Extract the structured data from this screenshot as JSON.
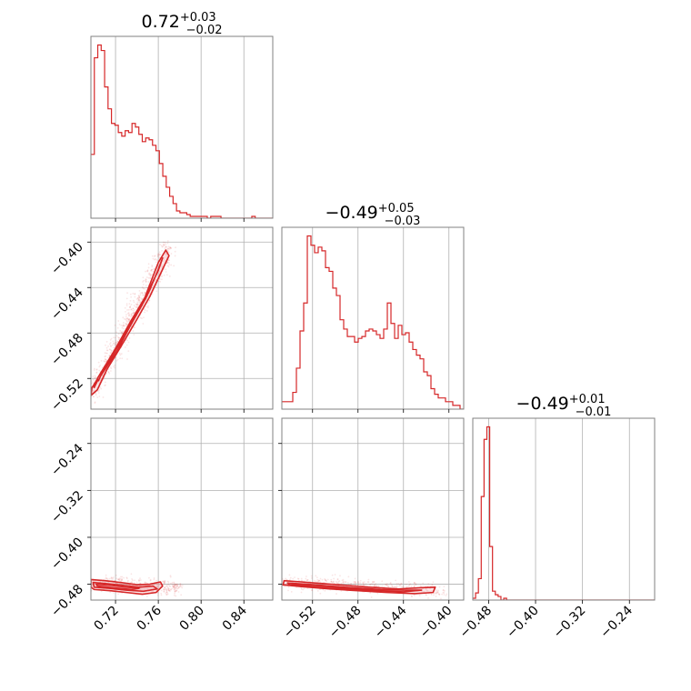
{
  "chart_data": {
    "type": "corner",
    "colors": {
      "main": "#d62728",
      "light": "#f4b8bd",
      "grid": "#b0b0b0",
      "frame": "#808080"
    },
    "parameters": [
      {
        "title_base": "0.72",
        "title_plus": "+0.03",
        "title_minus": "−0.02"
      },
      {
        "title_base": "−0.49",
        "title_plus": "+0.05",
        "title_minus": "−0.03"
      },
      {
        "title_base": "−0.49",
        "title_plus": "+0.01",
        "title_minus": "−0.01"
      }
    ],
    "axes": {
      "p1": {
        "range": [
          0.697,
          0.867
        ],
        "ticks": [
          0.72,
          0.76,
          0.8,
          0.84
        ],
        "labels": [
          "0.72",
          "0.76",
          "0.80",
          "0.84"
        ]
      },
      "p2": {
        "range": [
          -0.547,
          -0.387
        ],
        "ticks": [
          -0.52,
          -0.48,
          -0.44,
          -0.4
        ],
        "labels": [
          "−0.52",
          "−0.48",
          "−0.44",
          "−0.40"
        ]
      },
      "p3": {
        "range": [
          -0.507,
          -0.197
        ],
        "ticks": [
          -0.48,
          -0.4,
          -0.32,
          -0.24
        ],
        "labels": [
          "−0.48",
          "−0.40",
          "−0.32",
          "−0.24"
        ]
      }
    },
    "hist1": {
      "edges_start": 0.697,
      "bin_width": 0.0032,
      "counts": [
        35,
        88,
        95,
        92,
        72,
        60,
        52,
        51,
        47,
        45,
        48,
        47,
        52,
        50,
        46,
        42,
        44,
        43,
        40,
        37,
        30,
        23,
        17,
        12,
        8,
        4,
        3,
        3,
        2,
        1,
        1,
        1,
        1,
        1,
        0,
        1,
        1,
        1,
        0,
        0,
        0,
        0,
        0,
        0,
        0,
        0,
        0,
        1,
        0,
        0,
        0,
        0,
        0,
        0
      ]
    },
    "hist2": {
      "edges_start": -0.547,
      "bin_width": 0.0032,
      "counts": [
        4,
        4,
        4,
        9,
        22,
        42,
        57,
        93,
        88,
        84,
        87,
        85,
        76,
        74,
        65,
        61,
        48,
        43,
        39,
        39,
        36,
        38,
        39,
        42,
        43,
        42,
        40,
        38,
        43,
        57,
        46,
        38,
        45,
        40,
        41,
        36,
        32,
        29,
        27,
        20,
        18,
        11,
        8,
        6,
        6,
        4,
        4,
        2,
        2,
        0
      ]
    },
    "hist3": {
      "edges_start": -0.507,
      "bin_width": 0.0048,
      "counts": [
        1,
        4,
        12,
        58,
        90,
        97,
        30,
        5,
        3,
        2,
        0,
        1,
        0,
        0,
        0,
        0,
        0,
        0,
        0,
        0,
        0,
        0,
        0,
        0,
        0,
        0,
        0,
        0,
        0,
        0,
        0,
        0,
        0,
        0,
        0,
        0,
        0,
        0,
        0,
        0,
        0,
        0,
        0,
        0,
        0,
        0,
        0,
        0,
        0,
        0,
        0,
        0,
        0,
        0,
        0,
        0,
        0,
        0,
        0,
        0,
        0,
        0,
        0,
        0,
        0
      ]
    },
    "contours": {
      "p2_vs_p1": [
        [
          [
            0.698,
            -0.528
          ],
          [
            0.708,
            -0.515
          ],
          [
            0.722,
            -0.495
          ],
          [
            0.733,
            -0.475
          ],
          [
            0.745,
            -0.455
          ],
          [
            0.753,
            -0.435
          ],
          [
            0.76,
            -0.418
          ],
          [
            0.767,
            -0.407
          ],
          [
            0.77,
            -0.412
          ],
          [
            0.762,
            -0.428
          ],
          [
            0.752,
            -0.448
          ],
          [
            0.74,
            -0.468
          ],
          [
            0.725,
            -0.492
          ],
          [
            0.712,
            -0.512
          ],
          [
            0.703,
            -0.53
          ],
          [
            0.697,
            -0.535
          ]
        ],
        [
          [
            0.7,
            -0.525
          ],
          [
            0.712,
            -0.508
          ],
          [
            0.726,
            -0.486
          ],
          [
            0.74,
            -0.462
          ],
          [
            0.752,
            -0.442
          ],
          [
            0.76,
            -0.424
          ],
          [
            0.764,
            -0.414
          ],
          [
            0.76,
            -0.425
          ],
          [
            0.748,
            -0.448
          ],
          [
            0.734,
            -0.47
          ],
          [
            0.72,
            -0.494
          ],
          [
            0.708,
            -0.513
          ],
          [
            0.7,
            -0.528
          ]
        ],
        [
          [
            0.703,
            -0.52
          ],
          [
            0.716,
            -0.5
          ],
          [
            0.731,
            -0.476
          ],
          [
            0.744,
            -0.455
          ],
          [
            0.753,
            -0.44
          ],
          [
            0.748,
            -0.45
          ],
          [
            0.736,
            -0.469
          ],
          [
            0.722,
            -0.492
          ],
          [
            0.71,
            -0.51
          ],
          [
            0.704,
            -0.522
          ]
        ]
      ],
      "p3_vs_p1": [
        [
          [
            0.697,
            -0.472
          ],
          [
            0.71,
            -0.474
          ],
          [
            0.725,
            -0.477
          ],
          [
            0.74,
            -0.481
          ],
          [
            0.752,
            -0.48
          ],
          [
            0.762,
            -0.476
          ],
          [
            0.764,
            -0.483
          ],
          [
            0.758,
            -0.494
          ],
          [
            0.745,
            -0.497
          ],
          [
            0.73,
            -0.494
          ],
          [
            0.715,
            -0.491
          ],
          [
            0.7,
            -0.489
          ],
          [
            0.697,
            -0.485
          ]
        ],
        [
          [
            0.699,
            -0.477
          ],
          [
            0.712,
            -0.479
          ],
          [
            0.728,
            -0.482
          ],
          [
            0.742,
            -0.485
          ],
          [
            0.755,
            -0.483
          ],
          [
            0.759,
            -0.488
          ],
          [
            0.746,
            -0.492
          ],
          [
            0.73,
            -0.49
          ],
          [
            0.714,
            -0.487
          ],
          [
            0.7,
            -0.485
          ]
        ],
        [
          [
            0.702,
            -0.48
          ],
          [
            0.716,
            -0.482
          ],
          [
            0.73,
            -0.485
          ],
          [
            0.742,
            -0.487
          ],
          [
            0.735,
            -0.489
          ],
          [
            0.718,
            -0.486
          ],
          [
            0.703,
            -0.483
          ]
        ]
      ],
      "p3_vs_p2": [
        [
          [
            -0.545,
            -0.474
          ],
          [
            -0.53,
            -0.476
          ],
          [
            -0.51,
            -0.479
          ],
          [
            -0.49,
            -0.482
          ],
          [
            -0.47,
            -0.485
          ],
          [
            -0.445,
            -0.488
          ],
          [
            -0.425,
            -0.486
          ],
          [
            -0.412,
            -0.485
          ],
          [
            -0.414,
            -0.494
          ],
          [
            -0.43,
            -0.496
          ],
          [
            -0.455,
            -0.494
          ],
          [
            -0.48,
            -0.491
          ],
          [
            -0.505,
            -0.488
          ],
          [
            -0.53,
            -0.484
          ],
          [
            -0.546,
            -0.481
          ]
        ],
        [
          [
            -0.542,
            -0.478
          ],
          [
            -0.525,
            -0.48
          ],
          [
            -0.505,
            -0.483
          ],
          [
            -0.485,
            -0.486
          ],
          [
            -0.46,
            -0.489
          ],
          [
            -0.44,
            -0.49
          ],
          [
            -0.424,
            -0.49
          ],
          [
            -0.44,
            -0.493
          ],
          [
            -0.465,
            -0.491
          ],
          [
            -0.49,
            -0.488
          ],
          [
            -0.515,
            -0.485
          ],
          [
            -0.54,
            -0.481
          ]
        ],
        [
          [
            -0.538,
            -0.48
          ],
          [
            -0.52,
            -0.482
          ],
          [
            -0.5,
            -0.485
          ],
          [
            -0.48,
            -0.488
          ],
          [
            -0.46,
            -0.49
          ],
          [
            -0.48,
            -0.49
          ],
          [
            -0.505,
            -0.487
          ],
          [
            -0.53,
            -0.483
          ]
        ]
      ]
    },
    "scatter_density": {
      "p2_vs_p1": {
        "center_line": [
          [
            0.697,
            -0.533
          ],
          [
            0.77,
            -0.405
          ]
        ],
        "spread": 0.006,
        "n": 700
      },
      "p3_vs_p1": {
        "center_line": [
          [
            0.697,
            -0.479
          ],
          [
            0.78,
            -0.486
          ]
        ],
        "spread": 0.006,
        "n": 500
      },
      "p3_vs_p2": {
        "center_line": [
          [
            -0.547,
            -0.476
          ],
          [
            -0.405,
            -0.49
          ]
        ],
        "spread": 0.006,
        "n": 500
      }
    }
  }
}
